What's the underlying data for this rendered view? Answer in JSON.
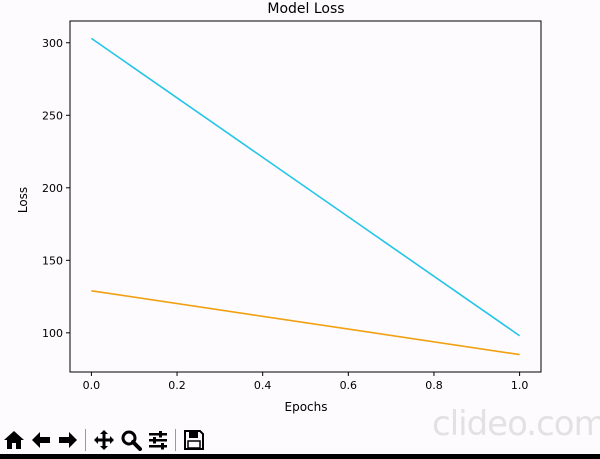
{
  "colors": {
    "background": "#fdfbfd",
    "axis": "#000000",
    "series_1": "#22c5e8",
    "series_2": "#f0a010"
  },
  "toolbar": {
    "buttons": [
      {
        "icon": "home-icon"
      },
      {
        "icon": "back-arrow-icon"
      },
      {
        "icon": "forward-arrow-icon"
      },
      {
        "icon": "pan-icon"
      },
      {
        "icon": "zoom-icon"
      },
      {
        "icon": "configure-subplots-icon"
      },
      {
        "icon": "save-icon"
      }
    ]
  },
  "watermark": "clideo.com",
  "chart_data": {
    "type": "line",
    "title": "Model Loss",
    "xlabel": "Epochs",
    "ylabel": "Loss",
    "xlim": [
      -0.05,
      1.05
    ],
    "ylim": [
      73,
      315
    ],
    "x_ticks": [
      0.0,
      0.2,
      0.4,
      0.6,
      0.8,
      1.0
    ],
    "x_tick_labels": [
      "0.0",
      "0.2",
      "0.4",
      "0.6",
      "0.8",
      "1.0"
    ],
    "y_ticks": [
      100,
      150,
      200,
      250,
      300
    ],
    "y_tick_labels": [
      "100",
      "150",
      "200",
      "250",
      "300"
    ],
    "grid": false,
    "series": [
      {
        "x": [
          0.0,
          1.0
        ],
        "y": [
          303,
          98
        ],
        "color": "#22c5e8"
      },
      {
        "x": [
          0.0,
          1.0
        ],
        "y": [
          129,
          85
        ],
        "color": "#f0a010"
      }
    ]
  }
}
